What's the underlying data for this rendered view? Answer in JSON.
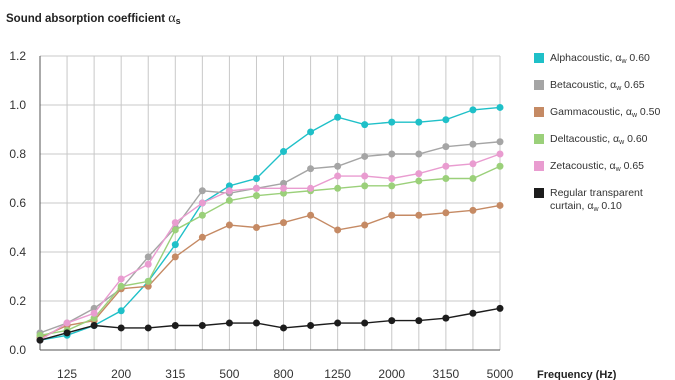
{
  "chart_data": {
    "type": "line",
    "title_text": "Sound absorption coefficient",
    "title_symbol": "α",
    "title_subscript": "s",
    "xlabel": "Frequency (Hz)",
    "x": [
      "100",
      "125",
      "160",
      "200",
      "250",
      "315",
      "400",
      "500",
      "630",
      "800",
      "1000",
      "1250",
      "1600",
      "2000",
      "2500",
      "3150",
      "4000",
      "5000"
    ],
    "x_tick_labels": [
      "125",
      "200",
      "315",
      "500",
      "800",
      "1250",
      "2000",
      "3150",
      "5000"
    ],
    "ylim": [
      0,
      1.2
    ],
    "y_ticks": [
      "0.0",
      "0.2",
      "0.4",
      "0.6",
      "0.8",
      "1.0",
      "1.2"
    ],
    "grid": true,
    "legend_position": "right",
    "series": [
      {
        "name": "Alphacoustic, αw 0.60",
        "color": "#1fc0c8",
        "values": [
          0.04,
          0.06,
          0.1,
          0.16,
          0.28,
          0.43,
          0.6,
          0.67,
          0.7,
          0.81,
          0.89,
          0.95,
          0.92,
          0.93,
          0.93,
          0.94,
          0.98,
          0.99
        ]
      },
      {
        "name": "Betacoustic, αw 0.65",
        "color": "#a5a5a5",
        "values": [
          0.07,
          0.11,
          0.17,
          0.25,
          0.38,
          0.5,
          0.65,
          0.64,
          0.66,
          0.68,
          0.74,
          0.75,
          0.79,
          0.8,
          0.8,
          0.83,
          0.84,
          0.85
        ]
      },
      {
        "name": "Gammacoustic, αw 0.50",
        "color": "#c58a64",
        "values": [
          0.05,
          0.1,
          0.12,
          0.25,
          0.26,
          0.38,
          0.46,
          0.51,
          0.5,
          0.52,
          0.55,
          0.49,
          0.51,
          0.55,
          0.55,
          0.56,
          0.57,
          0.59
        ]
      },
      {
        "name": "Deltacoustic, αw 0.60",
        "color": "#9bd07a",
        "values": [
          0.06,
          0.08,
          0.13,
          0.26,
          0.28,
          0.49,
          0.55,
          0.61,
          0.63,
          0.64,
          0.65,
          0.66,
          0.67,
          0.67,
          0.69,
          0.7,
          0.7,
          0.75
        ]
      },
      {
        "name": "Zetacoustic, αw 0.65",
        "color": "#e99cd0",
        "values": [
          0.04,
          0.11,
          0.15,
          0.29,
          0.35,
          0.52,
          0.6,
          0.65,
          0.66,
          0.66,
          0.66,
          0.71,
          0.71,
          0.7,
          0.72,
          0.75,
          0.76,
          0.8
        ]
      },
      {
        "name": "Regular transparent curtain, αw 0.10",
        "color": "#1c1c1c",
        "values": [
          0.04,
          0.07,
          0.1,
          0.09,
          0.09,
          0.1,
          0.1,
          0.11,
          0.11,
          0.09,
          0.1,
          0.11,
          0.11,
          0.12,
          0.12,
          0.13,
          0.15,
          0.17
        ]
      }
    ]
  },
  "legend": [
    {
      "name": "Alphacoustic, ",
      "sym": "α",
      "sub": "w",
      "value": " 0.60",
      "color": "#1fc0c8"
    },
    {
      "name": "Betacoustic, ",
      "sym": "α",
      "sub": "w",
      "value": " 0.65",
      "color": "#a5a5a5"
    },
    {
      "name": "Gammacoustic, ",
      "sym": "α",
      "sub": "w",
      "value": " 0.50",
      "color": "#c58a64"
    },
    {
      "name": "Deltacoustic, ",
      "sym": "α",
      "sub": "w",
      "value": " 0.60",
      "color": "#9bd07a"
    },
    {
      "name": "Zetacoustic, ",
      "sym": "α",
      "sub": "w",
      "value": " 0.65",
      "color": "#e99cd0"
    },
    {
      "name": "Regular transparent curtain, ",
      "sym": "α",
      "sub": "w",
      "value": " 0.10",
      "color": "#1c1c1c"
    }
  ]
}
